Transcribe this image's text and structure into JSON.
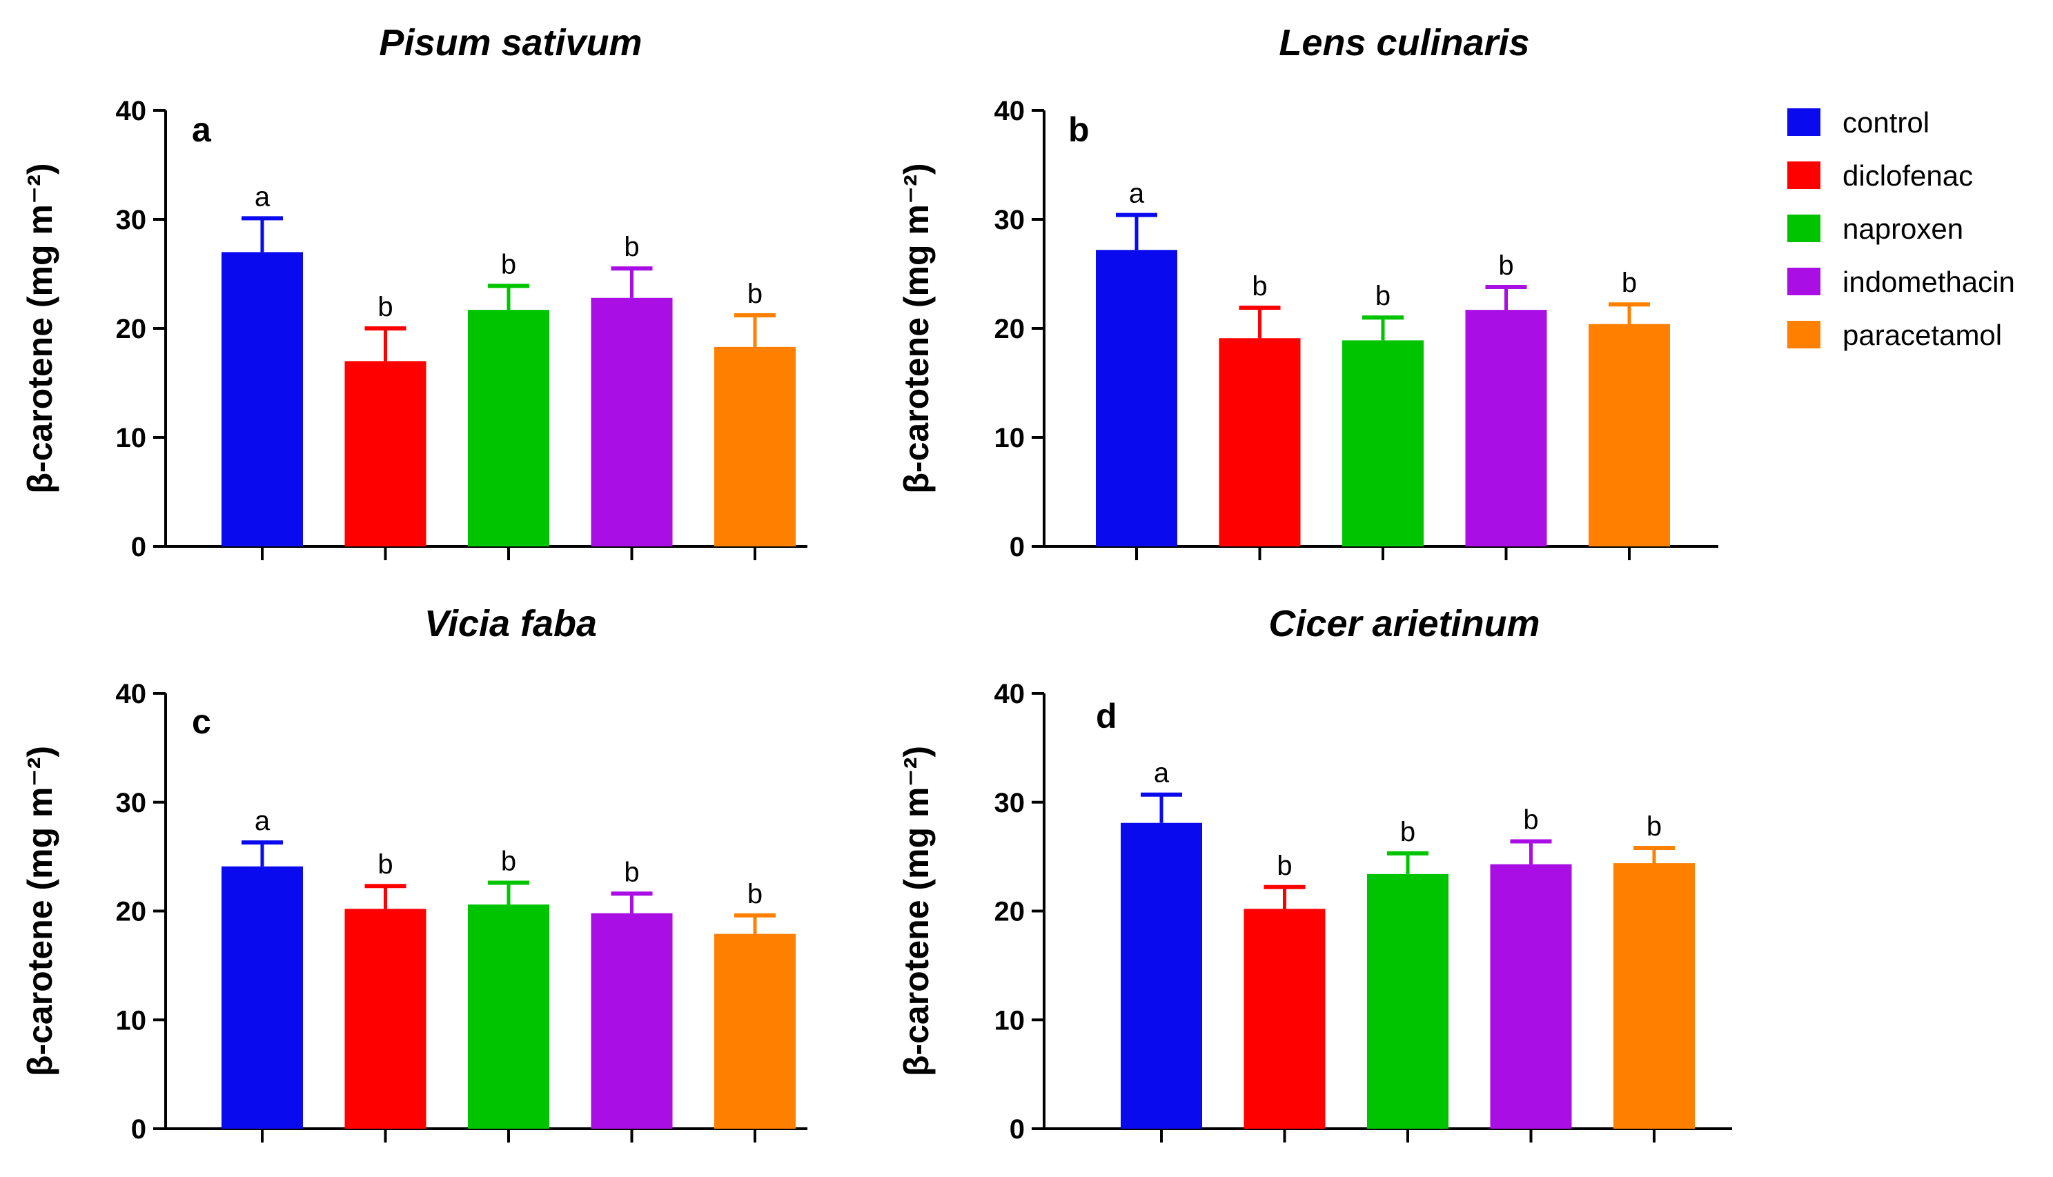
{
  "chart_data": [
    {
      "panel": "a",
      "type": "bar",
      "title": "Pisum sativum",
      "ylabel": "β-carotene (mg m⁻²)",
      "ylim": [
        0,
        40
      ],
      "yticks": [
        0,
        10,
        20,
        30,
        40
      ],
      "categories": [
        "control",
        "diclofenac",
        "naproxen",
        "indomethacin",
        "paracetamol"
      ],
      "values": [
        27,
        17,
        21.7,
        22.8,
        18.3
      ],
      "errors": [
        3.1,
        3.0,
        2.2,
        2.7,
        2.9
      ],
      "labels": [
        "a",
        "b",
        "b",
        "b",
        "b"
      ]
    },
    {
      "panel": "b",
      "type": "bar",
      "title": "Lens culinaris",
      "ylabel": "β-carotene (mg m⁻²)",
      "ylim": [
        0,
        40
      ],
      "yticks": [
        0,
        10,
        20,
        30,
        40
      ],
      "categories": [
        "control",
        "diclofenac",
        "naproxen",
        "indomethacin",
        "paracetamol"
      ],
      "values": [
        27.2,
        19.1,
        18.9,
        21.7,
        20.4
      ],
      "errors": [
        3.2,
        2.8,
        2.1,
        2.1,
        1.8
      ],
      "labels": [
        "a",
        "b",
        "b",
        "b",
        "b"
      ]
    },
    {
      "panel": "c",
      "type": "bar",
      "title": "Vicia faba",
      "ylabel": "β-carotene (mg m⁻²)",
      "ylim": [
        0,
        40
      ],
      "yticks": [
        0,
        10,
        20,
        30,
        40
      ],
      "categories": [
        "control",
        "diclofenac",
        "naproxen",
        "indomethacin",
        "paracetamol"
      ],
      "values": [
        24.1,
        20.2,
        20.6,
        19.8,
        17.9
      ],
      "errors": [
        2.2,
        2.1,
        2.0,
        1.8,
        1.7
      ],
      "labels": [
        "a",
        "b",
        "b",
        "b",
        "b"
      ]
    },
    {
      "panel": "d",
      "type": "bar",
      "title": "Cicer arietinum",
      "ylabel": "β-carotene (mg m⁻²)",
      "ylim": [
        0,
        40
      ],
      "yticks": [
        0,
        10,
        20,
        30,
        40
      ],
      "categories": [
        "control",
        "diclofenac",
        "naproxen",
        "indomethacin",
        "paracetamol"
      ],
      "values": [
        28.1,
        20.2,
        23.4,
        24.3,
        24.4
      ],
      "errors": [
        2.6,
        2.0,
        1.9,
        2.1,
        1.4
      ],
      "labels": [
        "a",
        "b",
        "b",
        "b",
        "b"
      ]
    }
  ],
  "legend": {
    "placement": "top-right",
    "items": [
      {
        "label": "control",
        "color": "#0a0aef"
      },
      {
        "label": "diclofenac",
        "color": "#fe0000"
      },
      {
        "label": "naproxen",
        "color": "#00c400"
      },
      {
        "label": "indomethacin",
        "color": "#a90ee5"
      },
      {
        "label": "paracetamol",
        "color": "#ff8000"
      }
    ]
  }
}
